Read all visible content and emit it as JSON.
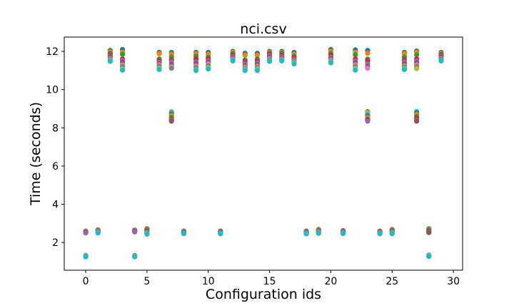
{
  "chart_data": {
    "type": "scatter",
    "title": "nci.csv",
    "xlabel": "Configuration ids",
    "ylabel": "Time (seconds)",
    "xlim": [
      -1.75,
      30.75
    ],
    "ylim": [
      0.55,
      12.75
    ],
    "x_ticks": [
      0,
      5,
      10,
      15,
      20,
      25,
      30
    ],
    "y_ticks": [
      2,
      4,
      6,
      8,
      10,
      12
    ],
    "grid": false,
    "legend": "none",
    "palette": [
      "#1f77b4",
      "#ff7f0e",
      "#2ca02c",
      "#d62728",
      "#9467bd",
      "#8c564b",
      "#e377c2",
      "#7f7f7f",
      "#bcbd22",
      "#17becf"
    ],
    "config_times": [
      {
        "x": 0,
        "y": [
          2.6,
          2.58,
          2.55,
          2.52,
          2.5,
          1.32,
          1.3,
          1.28,
          1.27,
          1.25
        ]
      },
      {
        "x": 1,
        "y": [
          2.66,
          2.63,
          2.61,
          2.6,
          2.58,
          2.56,
          2.55,
          2.53,
          2.52,
          2.5
        ]
      },
      {
        "x": 2,
        "y": [
          12.05,
          11.98,
          11.9,
          11.82,
          11.75,
          11.7,
          11.62,
          11.58,
          11.52,
          11.48
        ]
      },
      {
        "x": 3,
        "y": [
          12.1,
          11.95,
          11.85,
          11.6,
          11.52,
          11.42,
          11.3,
          11.2,
          11.08,
          11.02
        ]
      },
      {
        "x": 4,
        "y": [
          2.65,
          2.62,
          2.6,
          2.58,
          2.55,
          1.32,
          1.3,
          1.29,
          1.27,
          1.25
        ]
      },
      {
        "x": 5,
        "y": [
          2.72,
          2.68,
          2.65,
          2.6,
          2.56,
          2.53,
          2.5,
          2.48,
          2.46,
          2.44
        ]
      },
      {
        "x": 6,
        "y": [
          11.95,
          11.88,
          11.6,
          11.5,
          11.42,
          11.35,
          11.3,
          11.22,
          11.12,
          11.05
        ]
      },
      {
        "x": 7,
        "y": [
          11.95,
          11.85,
          11.7,
          11.55,
          11.45,
          11.3,
          11.2,
          11.12,
          8.85,
          8.8,
          8.72,
          8.65,
          8.55,
          8.45,
          8.4,
          8.35
        ]
      },
      {
        "x": 8,
        "y": [
          2.6,
          2.58,
          2.56,
          2.54,
          2.52,
          2.5,
          2.49,
          2.48,
          2.47,
          2.46
        ]
      },
      {
        "x": 9,
        "y": [
          11.95,
          11.88,
          11.75,
          11.6,
          11.45,
          11.35,
          11.25,
          11.15,
          11.05,
          11.0
        ]
      },
      {
        "x": 10,
        "y": [
          11.95,
          11.85,
          11.7,
          11.6,
          11.5,
          11.42,
          11.35,
          11.25,
          11.15,
          11.08
        ]
      },
      {
        "x": 11,
        "y": [
          2.6,
          2.58,
          2.56,
          2.54,
          2.52,
          2.5,
          2.49,
          2.48,
          2.47,
          2.46
        ]
      },
      {
        "x": 12,
        "y": [
          12.0,
          11.95,
          11.88,
          11.8,
          11.72,
          11.65,
          11.6,
          11.55,
          11.52,
          11.5
        ]
      },
      {
        "x": 13,
        "y": [
          11.9,
          11.8,
          11.55,
          11.45,
          11.35,
          11.25,
          11.18,
          11.1,
          11.05,
          11.0
        ]
      },
      {
        "x": 14,
        "y": [
          11.9,
          11.8,
          11.6,
          11.5,
          11.4,
          11.3,
          11.22,
          11.15,
          11.08,
          11.0
        ]
      },
      {
        "x": 15,
        "y": [
          12.0,
          11.95,
          11.9,
          11.85,
          11.78,
          11.7,
          11.62,
          11.55,
          11.5,
          11.48
        ]
      },
      {
        "x": 16,
        "y": [
          12.0,
          11.95,
          11.9,
          11.8,
          11.72,
          11.65,
          11.6,
          11.55,
          11.52,
          11.5
        ]
      },
      {
        "x": 17,
        "y": [
          11.95,
          11.85,
          11.75,
          11.68,
          11.6,
          11.55,
          11.5,
          11.45,
          11.4,
          11.35
        ]
      },
      {
        "x": 18,
        "y": [
          2.6,
          2.58,
          2.56,
          2.54,
          2.52,
          2.5,
          2.48,
          2.47,
          2.46,
          2.45
        ]
      },
      {
        "x": 19,
        "y": [
          2.68,
          2.65,
          2.62,
          2.6,
          2.58,
          2.56,
          2.54,
          2.52,
          2.5,
          2.48
        ]
      },
      {
        "x": 20,
        "y": [
          12.1,
          12.0,
          11.88,
          11.8,
          11.7,
          11.62,
          11.55,
          11.48,
          11.45,
          11.4
        ]
      },
      {
        "x": 21,
        "y": [
          2.62,
          2.6,
          2.58,
          2.56,
          2.54,
          2.52,
          2.5,
          2.49,
          2.48,
          2.47
        ]
      },
      {
        "x": 22,
        "y": [
          12.08,
          11.95,
          11.82,
          11.6,
          11.5,
          11.4,
          11.3,
          11.2,
          11.1,
          11.02
        ]
      },
      {
        "x": 23,
        "y": [
          12.05,
          11.9,
          11.6,
          11.5,
          11.35,
          11.2,
          11.12,
          8.85,
          8.78,
          8.7,
          8.62,
          8.55,
          8.45,
          8.4,
          8.35
        ]
      },
      {
        "x": 24,
        "y": [
          2.6,
          2.58,
          2.56,
          2.54,
          2.52,
          2.5,
          2.49,
          2.48,
          2.47,
          2.46
        ]
      },
      {
        "x": 25,
        "y": [
          2.68,
          2.65,
          2.62,
          2.6,
          2.58,
          2.55,
          2.52,
          2.5,
          2.48,
          2.46
        ]
      },
      {
        "x": 26,
        "y": [
          11.95,
          11.88,
          11.7,
          11.55,
          11.45,
          11.35,
          11.25,
          11.18,
          11.1,
          11.05
        ]
      },
      {
        "x": 27,
        "y": [
          12.02,
          11.95,
          11.82,
          11.6,
          11.5,
          11.4,
          11.3,
          11.2,
          11.1,
          8.85,
          8.78,
          8.7,
          8.6,
          8.5,
          8.4,
          8.35
        ]
      },
      {
        "x": 28,
        "y": [
          2.72,
          2.68,
          2.65,
          2.6,
          2.56,
          2.52,
          1.35,
          1.32,
          1.3,
          1.27
        ]
      },
      {
        "x": 29,
        "y": [
          11.95,
          11.9,
          11.85,
          11.8,
          11.75,
          11.7,
          11.62,
          11.58,
          11.52,
          11.5
        ]
      }
    ]
  }
}
